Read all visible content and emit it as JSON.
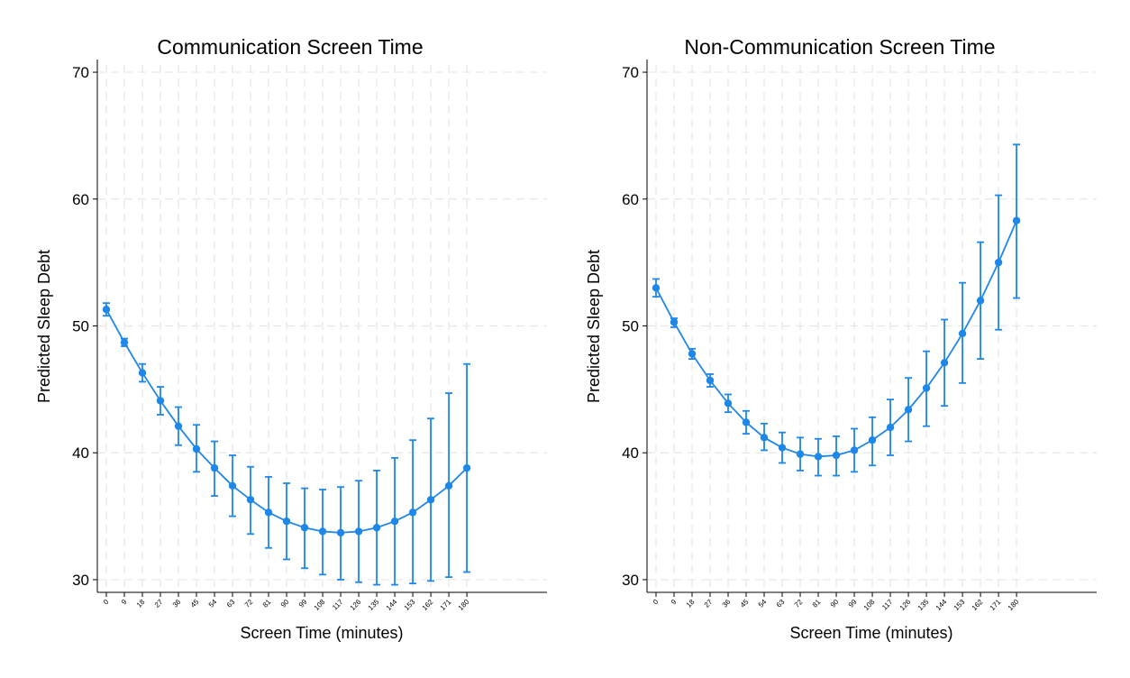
{
  "chart_data": [
    {
      "type": "line",
      "title": "Communication Screen Time",
      "xlabel": "Screen Time (minutes)",
      "ylabel": "Predicted Sleep Debt",
      "x": [
        0,
        9,
        18,
        27,
        36,
        45,
        54,
        63,
        72,
        81,
        90,
        99,
        108,
        117,
        126,
        135,
        144,
        153,
        162,
        171,
        180
      ],
      "xticks": [
        "0",
        "9",
        "18",
        "27",
        "36",
        "45",
        "54",
        "63",
        "72",
        "81",
        "90",
        "99",
        "108",
        "117",
        "126",
        "135",
        "144",
        "153",
        "162",
        "171",
        "180"
      ],
      "yticks": [
        "30",
        "40",
        "50",
        "60",
        "70"
      ],
      "ylim": [
        29,
        71
      ],
      "xlim": [
        -4.5,
        220
      ],
      "grid": true,
      "color": "#1f87e8",
      "series": [
        {
          "values": [
            51.3,
            48.7,
            46.3,
            44.1,
            42.1,
            40.3,
            38.8,
            37.4,
            36.3,
            35.3,
            34.6,
            34.1,
            33.8,
            33.7,
            33.8,
            34.1,
            34.6,
            35.3,
            36.3,
            37.4,
            38.8
          ],
          "ci_low": [
            50.8,
            48.4,
            45.6,
            43.0,
            40.6,
            38.5,
            36.6,
            35.0,
            33.6,
            32.5,
            31.6,
            30.9,
            30.4,
            30.0,
            29.8,
            29.6,
            29.6,
            29.7,
            29.9,
            30.2,
            30.6
          ],
          "ci_high": [
            51.8,
            49.0,
            47.0,
            45.2,
            43.6,
            42.2,
            40.9,
            39.8,
            38.9,
            38.1,
            37.6,
            37.2,
            37.1,
            37.3,
            37.8,
            38.6,
            39.6,
            41.0,
            42.7,
            44.7,
            47.0
          ]
        }
      ]
    },
    {
      "type": "line",
      "title": "Non-Communication Screen Time",
      "xlabel": "Screen Time (minutes)",
      "ylabel": "Predicted Sleep Debt",
      "x": [
        0,
        9,
        18,
        27,
        36,
        45,
        54,
        63,
        72,
        81,
        90,
        99,
        108,
        117,
        126,
        135,
        144,
        153,
        162,
        171,
        180
      ],
      "xticks": [
        "0",
        "9",
        "18",
        "27",
        "36",
        "45",
        "54",
        "63",
        "72",
        "81",
        "90",
        "99",
        "108",
        "117",
        "126",
        "135",
        "144",
        "153",
        "162",
        "171",
        "180"
      ],
      "yticks": [
        "30",
        "40",
        "50",
        "60",
        "70"
      ],
      "ylim": [
        29,
        71
      ],
      "xlim": [
        -4.5,
        220
      ],
      "grid": true,
      "color": "#1f87e8",
      "series": [
        {
          "values": [
            53.0,
            50.3,
            47.8,
            45.7,
            43.9,
            42.4,
            41.2,
            40.4,
            39.9,
            39.7,
            39.8,
            40.2,
            41.0,
            42.0,
            43.4,
            45.1,
            47.1,
            49.4,
            52.0,
            55.0,
            58.3
          ],
          "ci_low": [
            52.3,
            49.9,
            47.4,
            45.2,
            43.2,
            41.5,
            40.2,
            39.2,
            38.6,
            38.2,
            38.2,
            38.5,
            39.0,
            39.8,
            40.9,
            42.1,
            43.7,
            45.5,
            47.4,
            49.7,
            52.2
          ],
          "ci_high": [
            53.7,
            50.6,
            48.2,
            46.2,
            44.6,
            43.3,
            42.3,
            41.6,
            41.2,
            41.1,
            41.3,
            41.9,
            42.8,
            44.2,
            45.9,
            48.0,
            50.5,
            53.4,
            56.6,
            60.3,
            64.3
          ]
        }
      ]
    }
  ]
}
